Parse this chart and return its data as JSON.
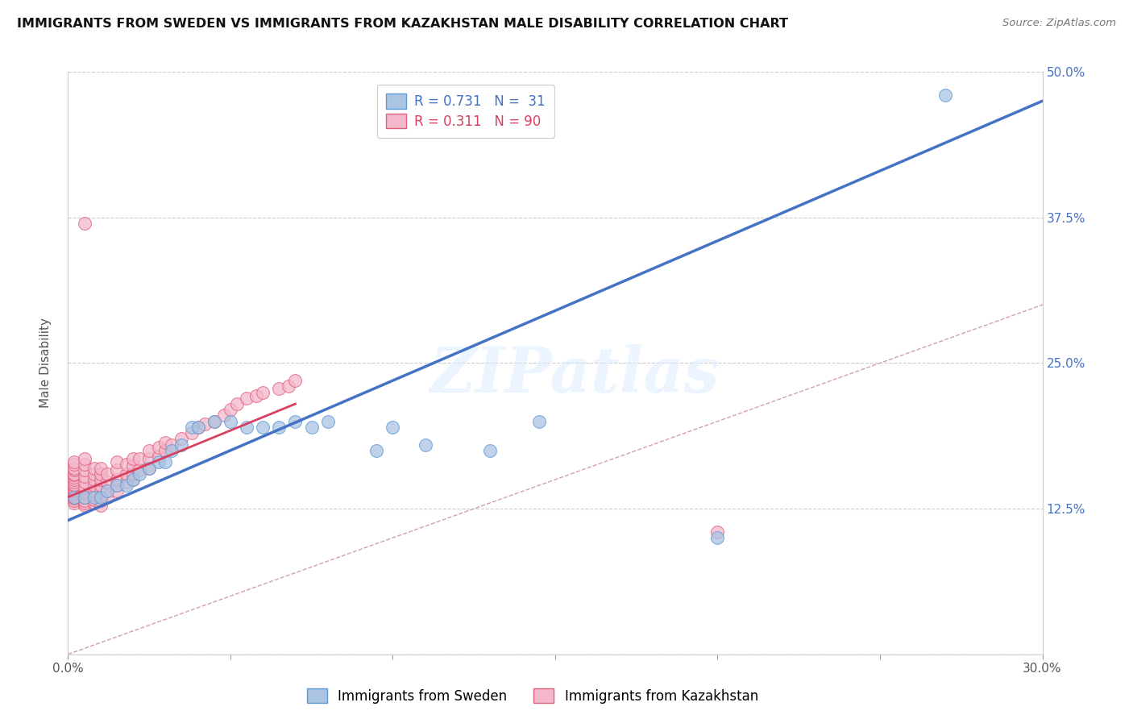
{
  "title": "IMMIGRANTS FROM SWEDEN VS IMMIGRANTS FROM KAZAKHSTAN MALE DISABILITY CORRELATION CHART",
  "source": "Source: ZipAtlas.com",
  "ylabel": "Male Disability",
  "xlim": [
    0.0,
    0.3
  ],
  "ylim": [
    0.0,
    0.5
  ],
  "x_tick_pos": [
    0.0,
    0.05,
    0.1,
    0.15,
    0.2,
    0.25,
    0.3
  ],
  "x_tick_labels": [
    "0.0%",
    "",
    "",
    "",
    "",
    "",
    "30.0%"
  ],
  "y_tick_pos": [
    0.0,
    0.125,
    0.25,
    0.375,
    0.5
  ],
  "y_tick_labels_right": [
    "",
    "12.5%",
    "25.0%",
    "37.5%",
    "50.0%"
  ],
  "color_sweden_fill": "#aac4e2",
  "color_sweden_edge": "#5b9bd5",
  "color_kaz_fill": "#f4b8cc",
  "color_kaz_edge": "#e0607a",
  "line_color_sweden": "#4472c4",
  "line_color_kaz": "#d94060",
  "diag_color": "#d0a0b0",
  "watermark": "ZIPatlas",
  "sweden_line_x0": 0.0,
  "sweden_line_y0": 0.115,
  "sweden_line_x1": 0.3,
  "sweden_line_y1": 0.475,
  "kaz_line_x0": 0.0,
  "kaz_line_y0": 0.135,
  "kaz_line_x1": 0.07,
  "kaz_line_y1": 0.215,
  "sweden_pts_x": [
    0.002,
    0.005,
    0.008,
    0.01,
    0.012,
    0.015,
    0.018,
    0.02,
    0.022,
    0.025,
    0.028,
    0.03,
    0.032,
    0.035,
    0.038,
    0.04,
    0.045,
    0.05,
    0.055,
    0.06,
    0.065,
    0.07,
    0.075,
    0.08,
    0.095,
    0.1,
    0.11,
    0.13,
    0.145,
    0.2,
    0.27
  ],
  "sweden_pts_y": [
    0.135,
    0.135,
    0.135,
    0.135,
    0.14,
    0.145,
    0.145,
    0.15,
    0.155,
    0.16,
    0.165,
    0.165,
    0.175,
    0.18,
    0.195,
    0.195,
    0.2,
    0.2,
    0.195,
    0.195,
    0.195,
    0.2,
    0.195,
    0.2,
    0.175,
    0.195,
    0.18,
    0.175,
    0.2,
    0.1,
    0.48
  ],
  "kaz_pts_x": [
    0.002,
    0.002,
    0.002,
    0.002,
    0.002,
    0.002,
    0.002,
    0.002,
    0.002,
    0.002,
    0.002,
    0.002,
    0.002,
    0.002,
    0.002,
    0.002,
    0.002,
    0.002,
    0.002,
    0.002,
    0.005,
    0.005,
    0.005,
    0.005,
    0.005,
    0.005,
    0.005,
    0.005,
    0.005,
    0.005,
    0.005,
    0.005,
    0.008,
    0.008,
    0.008,
    0.008,
    0.008,
    0.008,
    0.008,
    0.008,
    0.01,
    0.01,
    0.01,
    0.01,
    0.01,
    0.01,
    0.01,
    0.01,
    0.012,
    0.012,
    0.012,
    0.012,
    0.015,
    0.015,
    0.015,
    0.015,
    0.015,
    0.018,
    0.018,
    0.018,
    0.02,
    0.02,
    0.02,
    0.02,
    0.022,
    0.022,
    0.025,
    0.025,
    0.025,
    0.028,
    0.028,
    0.03,
    0.03,
    0.032,
    0.035,
    0.038,
    0.04,
    0.042,
    0.045,
    0.048,
    0.05,
    0.052,
    0.055,
    0.058,
    0.06,
    0.065,
    0.068,
    0.07,
    0.005,
    0.2
  ],
  "kaz_pts_y": [
    0.13,
    0.132,
    0.134,
    0.135,
    0.136,
    0.138,
    0.14,
    0.141,
    0.143,
    0.145,
    0.146,
    0.148,
    0.15,
    0.152,
    0.154,
    0.155,
    0.158,
    0.16,
    0.163,
    0.165,
    0.128,
    0.13,
    0.132,
    0.135,
    0.138,
    0.14,
    0.143,
    0.148,
    0.153,
    0.158,
    0.163,
    0.168,
    0.13,
    0.133,
    0.137,
    0.14,
    0.145,
    0.15,
    0.155,
    0.16,
    0.128,
    0.132,
    0.136,
    0.14,
    0.145,
    0.15,
    0.155,
    0.16,
    0.135,
    0.14,
    0.148,
    0.155,
    0.14,
    0.145,
    0.15,
    0.158,
    0.165,
    0.148,
    0.155,
    0.163,
    0.15,
    0.155,
    0.162,
    0.168,
    0.158,
    0.168,
    0.16,
    0.168,
    0.175,
    0.17,
    0.178,
    0.175,
    0.182,
    0.18,
    0.185,
    0.19,
    0.195,
    0.198,
    0.2,
    0.205,
    0.21,
    0.215,
    0.22,
    0.222,
    0.225,
    0.228,
    0.23,
    0.235,
    0.37,
    0.105
  ]
}
